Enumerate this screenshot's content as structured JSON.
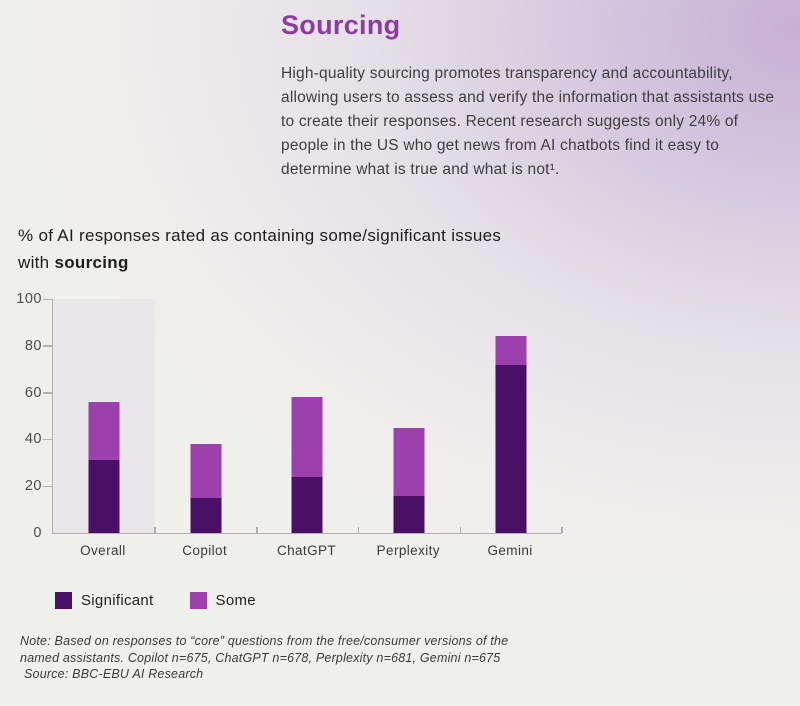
{
  "page": {
    "title": "Sourcing",
    "intro": "High-quality sourcing promotes transparency and accountability, allowing users to assess and verify the information that assistants use to create their responses. Recent research suggests only 24% of people in the US who get news from AI chatbots find it easy to determine what is true and what is not¹.",
    "chart_heading_prefix": "% of AI responses rated as containing some/significant issues with ",
    "chart_heading_emphasis": "sourcing"
  },
  "chart_data": {
    "type": "bar",
    "stacked": true,
    "title": "% of AI responses rated as containing some/significant issues with sourcing",
    "categories": [
      "Overall",
      "Copilot",
      "ChatGPT",
      "Perplexity",
      "Gemini"
    ],
    "series": [
      {
        "name": "Significant",
        "color": "#4a1065",
        "values": [
          31,
          15,
          24,
          16,
          72
        ]
      },
      {
        "name": "Some",
        "color": "#9c40ae",
        "values": [
          25,
          23,
          34,
          29,
          12
        ]
      }
    ],
    "totals": [
      56,
      38,
      58,
      45,
      84
    ],
    "xlabel": "",
    "ylabel": "",
    "ylim": [
      0,
      100
    ],
    "yticks": [
      0,
      20,
      40,
      60,
      80,
      100
    ],
    "grid": false,
    "highlight_category": "Overall",
    "highlight_band_color": "#e9e7e9",
    "legend_position": "bottom-left"
  },
  "legend": {
    "items": [
      {
        "label": "Significant",
        "color": "#4a1065"
      },
      {
        "label": "Some",
        "color": "#9c40ae"
      }
    ]
  },
  "footer": {
    "note": "Note: Based on responses to “core” questions from the free/consumer versions of the named assistants. Copilot n=675, ChatGPT n=678, Perplexity n=681, Gemini n=675",
    "source": "Source: BBC-EBU AI Research"
  },
  "colors": {
    "accent_title": "#8c3ba6",
    "significant": "#4a1065",
    "some": "#9c40ae",
    "axis": "#b3afb4",
    "background_top_right": "#c6b0d5",
    "background_bottom": "#eff0eb"
  }
}
